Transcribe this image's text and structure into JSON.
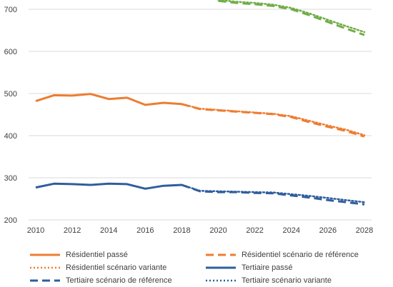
{
  "chart_data": {
    "type": "line",
    "title": "",
    "xlabel": "",
    "ylabel": "",
    "xlim": [
      2010,
      2028
    ],
    "ylim": [
      200,
      700
    ],
    "x_ticks": [
      "2010",
      "2012",
      "2014",
      "2016",
      "2018",
      "2020",
      "2022",
      "2024",
      "2026",
      "2028"
    ],
    "y_ticks": [
      "200",
      "300",
      "400",
      "500",
      "600",
      "700"
    ],
    "grid": "horizontal",
    "legend_position": "bottom",
    "series": [
      {
        "name": "Résidentiel passé",
        "color": "#ED7D31",
        "style": "solid",
        "x": [
          2010,
          2011,
          2012,
          2013,
          2014,
          2015,
          2016,
          2017,
          2018
        ],
        "y": [
          482,
          496,
          495,
          499,
          487,
          490,
          473,
          478,
          475
        ]
      },
      {
        "name": "Résidentiel scénario de référence",
        "color": "#ED7D31",
        "style": "long-dash",
        "x": [
          2018,
          2019,
          2020,
          2021,
          2022,
          2023,
          2024,
          2025,
          2026,
          2027,
          2028
        ],
        "y": [
          475,
          463,
          460,
          457,
          454,
          451,
          444,
          432,
          421,
          411,
          398
        ]
      },
      {
        "name": "Résidentiel scénario variante",
        "color": "#ED7D31",
        "style": "dotted",
        "x": [
          2018,
          2019,
          2020,
          2021,
          2022,
          2023,
          2024,
          2025,
          2026,
          2027,
          2028
        ],
        "y": [
          475,
          464,
          461,
          458,
          455,
          452,
          446,
          435,
          424,
          414,
          401
        ]
      },
      {
        "name": "Tertiaire passé",
        "color": "#2E5E9E",
        "style": "solid",
        "x": [
          2010,
          2011,
          2012,
          2013,
          2014,
          2015,
          2016,
          2017,
          2018
        ],
        "y": [
          277,
          286,
          285,
          283,
          286,
          285,
          274,
          281,
          283
        ]
      },
      {
        "name": "Tertiaire scénario de référence",
        "color": "#2E5E9E",
        "style": "long-dash",
        "x": [
          2018,
          2019,
          2020,
          2021,
          2022,
          2023,
          2024,
          2025,
          2026,
          2027,
          2028
        ],
        "y": [
          283,
          268,
          266,
          266,
          264,
          263,
          258,
          253,
          247,
          242,
          237
        ]
      },
      {
        "name": "Tertiaire scénario variante",
        "color": "#2E5E9E",
        "style": "dotted",
        "x": [
          2018,
          2019,
          2020,
          2021,
          2022,
          2023,
          2024,
          2025,
          2026,
          2027,
          2028
        ],
        "y": [
          283,
          269,
          268,
          267,
          266,
          265,
          261,
          257,
          252,
          247,
          242
        ]
      },
      {
        "name": "",
        "color": "#70AD47",
        "style": "long-dash",
        "x": [
          2020,
          2021,
          2022,
          2023,
          2024,
          2025,
          2026,
          2027,
          2028
        ],
        "y": [
          720,
          715,
          712,
          708,
          700,
          686,
          670,
          654,
          639
        ]
      },
      {
        "name": "",
        "color": "#70AD47",
        "style": "dotted",
        "x": [
          2020,
          2021,
          2022,
          2023,
          2024,
          2025,
          2026,
          2027,
          2028
        ],
        "y": [
          722,
          718,
          715,
          711,
          703,
          690,
          675,
          660,
          646
        ]
      }
    ]
  }
}
